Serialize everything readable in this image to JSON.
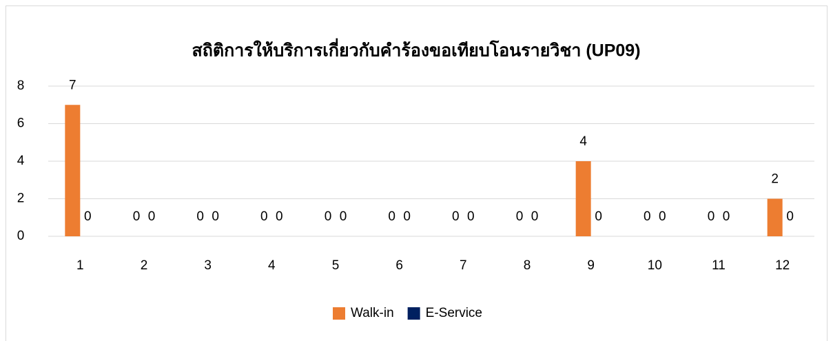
{
  "chart_data": {
    "type": "bar",
    "title": "สถิติการให้บริการเกี่ยวกับคำร้องขอเทียบโอนรายวิชา (UP09)",
    "categories": [
      "1",
      "2",
      "3",
      "4",
      "5",
      "6",
      "7",
      "8",
      "9",
      "10",
      "11",
      "12"
    ],
    "series": [
      {
        "name": "Walk-in",
        "color": "#ed7d31",
        "values": [
          7,
          0,
          0,
          0,
          0,
          0,
          0,
          0,
          4,
          0,
          0,
          2
        ]
      },
      {
        "name": "E-Service",
        "color": "#002060",
        "values": [
          0,
          0,
          0,
          0,
          0,
          0,
          0,
          0,
          0,
          0,
          0,
          0
        ]
      }
    ],
    "ylim": [
      0,
      8
    ],
    "yticks": [
      0,
      2,
      4,
      6,
      8
    ],
    "grid": true,
    "legend": "bottom"
  }
}
